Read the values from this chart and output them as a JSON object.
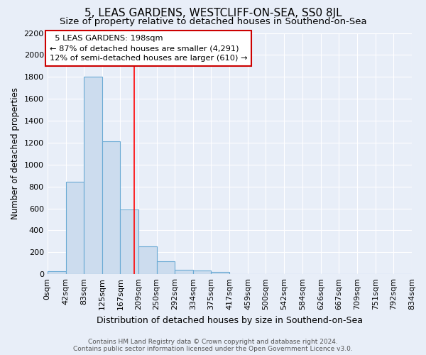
{
  "title": "5, LEAS GARDENS, WESTCLIFF-ON-SEA, SS0 8JL",
  "subtitle": "Size of property relative to detached houses in Southend-on-Sea",
  "xlabel": "Distribution of detached houses by size in Southend-on-Sea",
  "ylabel": "Number of detached properties",
  "bar_heights": [
    25,
    840,
    1800,
    1210,
    590,
    255,
    120,
    42,
    35,
    22,
    0,
    0,
    0,
    0,
    0,
    0,
    0,
    0,
    0,
    0
  ],
  "bin_edges": [
    0,
    42,
    83,
    125,
    167,
    209,
    250,
    292,
    334,
    375,
    417,
    459,
    500,
    542,
    584,
    626,
    667,
    709,
    751,
    792,
    834
  ],
  "xtick_labels": [
    "0sqm",
    "42sqm",
    "83sqm",
    "125sqm",
    "167sqm",
    "209sqm",
    "250sqm",
    "292sqm",
    "334sqm",
    "375sqm",
    "417sqm",
    "459sqm",
    "500sqm",
    "542sqm",
    "584sqm",
    "626sqm",
    "667sqm",
    "709sqm",
    "751sqm",
    "792sqm",
    "834sqm"
  ],
  "bar_color": "#ccdcee",
  "bar_edge_color": "#6aaad4",
  "red_line_x": 198,
  "ylim": [
    0,
    2200
  ],
  "yticks": [
    0,
    200,
    400,
    600,
    800,
    1000,
    1200,
    1400,
    1600,
    1800,
    2000,
    2200
  ],
  "annotation_text": "  5 LEAS GARDENS: 198sqm\n← 87% of detached houses are smaller (4,291)\n12% of semi-detached houses are larger (610) →",
  "annotation_box_color": "#ffffff",
  "annotation_box_edge_color": "#cc0000",
  "footer_text": "Contains HM Land Registry data © Crown copyright and database right 2024.\nContains public sector information licensed under the Open Government Licence v3.0.",
  "background_color": "#e8eef8",
  "grid_color": "#ffffff",
  "title_fontsize": 11,
  "subtitle_fontsize": 9.5,
  "xlabel_fontsize": 9,
  "ylabel_fontsize": 8.5,
  "tick_fontsize": 8,
  "footer_fontsize": 6.5
}
